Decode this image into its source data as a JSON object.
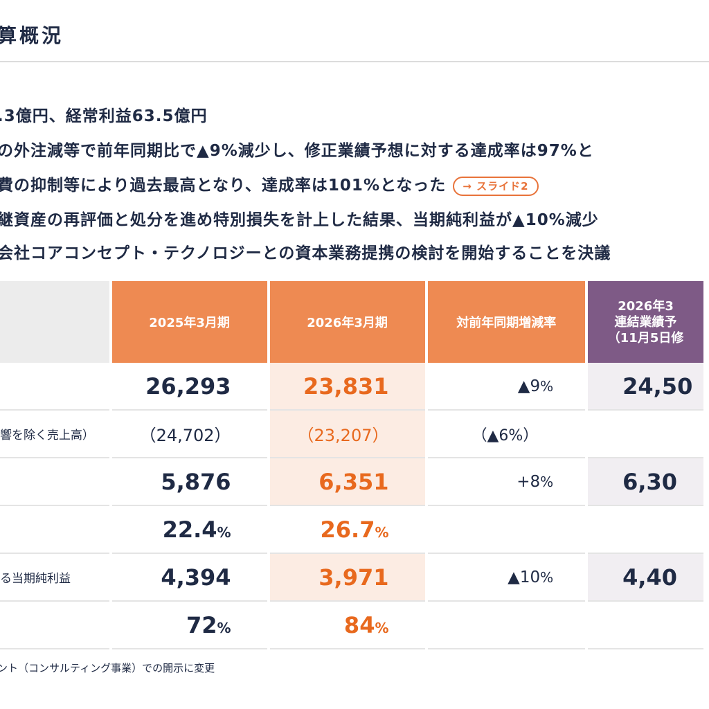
{
  "title": "算概況",
  "bullets": [
    ".3億円、経常利益63.5億円",
    "の外注減等で前年同期比で▲9%減少し、修正業績予想に対する達成率は97%と",
    "費の抑制等により過去最高となり、達成率は101%となった",
    "継資産の再評価と処分を進め特別損失を計上した結果、当期純利益が▲10%減少",
    "会社コアコンセプト・テクノロジーとの資本業務提携の検討を開始することを決議"
  ],
  "slide_link": "→ スライド2",
  "table": {
    "headers": {
      "prev": "2025年3月期",
      "cur": "2026年3月期",
      "chg": "対前年同期増減率",
      "fc_line1": "2026年3",
      "fc_line2": "連結業績予",
      "fc_line3": "（11月5日修"
    },
    "rows": [
      {
        "label": "",
        "prev": "26,293",
        "cur": "23,831",
        "chg": "▲9",
        "chg_unit": "%",
        "fc": "24,50"
      },
      {
        "label": "響を除く売上高）",
        "prev": "（24,702）",
        "cur": "（23,207）",
        "chg": "（▲6%）",
        "fc": ""
      },
      {
        "label": "",
        "prev": "5,876",
        "cur": "6,351",
        "chg": "+8",
        "chg_unit": "%",
        "fc": "6,30"
      },
      {
        "label": "",
        "prev": "22.4",
        "prev_unit": "%",
        "cur": "26.7",
        "cur_unit": "%",
        "chg": "",
        "fc": ""
      },
      {
        "label": "る当期純利益",
        "prev": "4,394",
        "cur": "3,971",
        "chg": "▲10",
        "chg_unit": "%",
        "fc": "4,40"
      },
      {
        "label": "",
        "prev": "72",
        "prev_unit": "%",
        "cur": "84",
        "cur_unit": "%",
        "chg": "",
        "fc": ""
      }
    ]
  },
  "footnote": "ント（コンサルティング事業）での開示に変更",
  "colors": {
    "orange": "#ee8a52",
    "highlight": "#e8691e",
    "purple": "#7e5a86",
    "navy": "#1f2a44"
  }
}
